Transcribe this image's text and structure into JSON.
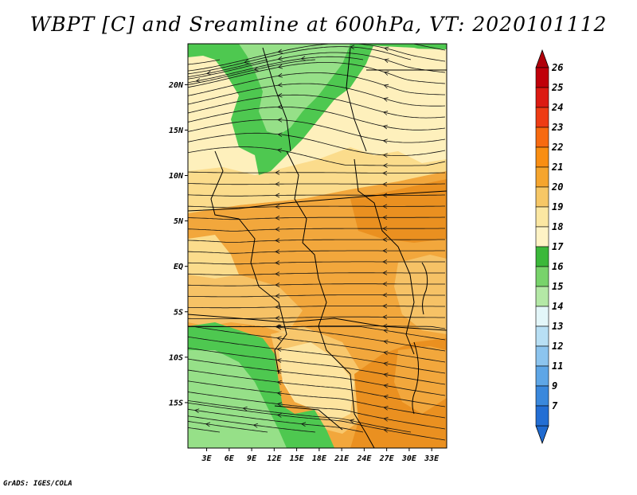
{
  "title": "WBPT [C] and Sreamline at 600hPa, VT: 2020101112",
  "credit": "GrADS: IGES/COLA",
  "axes": {
    "lat_labels": [
      "20N",
      "15N",
      "10N",
      "5N",
      "EQ",
      "5S",
      "10S",
      "15S"
    ],
    "lat_values": [
      20,
      15,
      10,
      5,
      0,
      -5,
      -10,
      -15
    ],
    "lon_labels": [
      "3E",
      "6E",
      "9E",
      "12E",
      "15E",
      "18E",
      "21E",
      "24E",
      "27E",
      "30E",
      "33E"
    ],
    "lon_values": [
      3,
      6,
      9,
      12,
      15,
      18,
      21,
      24,
      27,
      30,
      33
    ],
    "lat_range": [
      -20,
      24.5
    ],
    "lon_range": [
      0.5,
      35
    ]
  },
  "colorbar": {
    "labels": [
      "26",
      "25",
      "24",
      "23",
      "22",
      "21",
      "20",
      "19",
      "18",
      "17",
      "16",
      "15",
      "14",
      "13",
      "12",
      "11",
      "9",
      "7"
    ],
    "colors": [
      "#c0000a",
      "#dc1a12",
      "#ee3c14",
      "#f76a10",
      "#f98e12",
      "#f5a52e",
      "#f6c766",
      "#fbe7a2",
      "#fef3c5",
      "#3bb83a",
      "#78d36b",
      "#b4e8a6",
      "#e3f6f9",
      "#b8dff4",
      "#8cc4ee",
      "#5ea6e6",
      "#3a88dc",
      "#236ed4"
    ],
    "top_arrow_color": "#b0000a",
    "bottom_arrow_color": "#1f6ad0"
  },
  "palette": {
    "green": "#4ec850",
    "light_green": "#96e088",
    "cream": "#fef0bc",
    "yellow": "#fbdc8c",
    "light_orange": "#f6c266",
    "orange": "#f2a73c",
    "dark_orange": "#ea9020"
  }
}
